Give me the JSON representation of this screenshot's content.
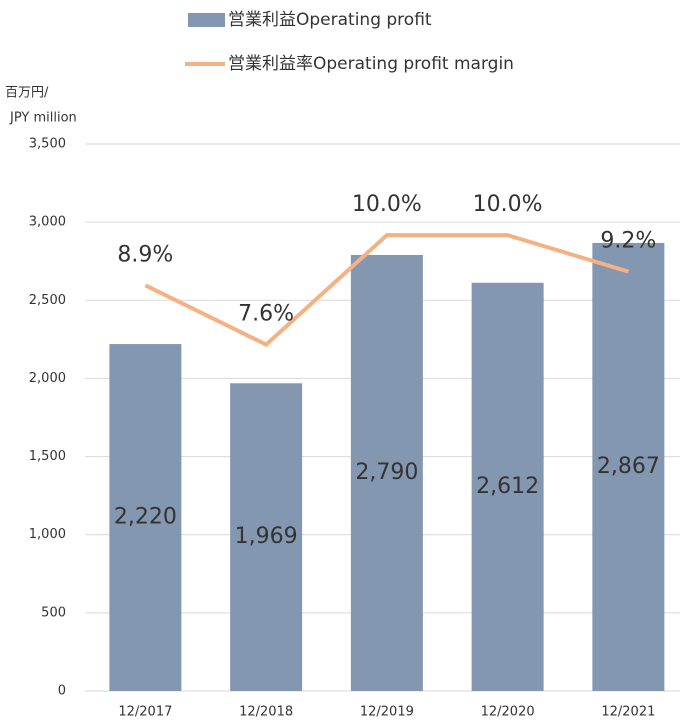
{
  "chart_data": {
    "type": "bar+line",
    "legend": "top",
    "y_label": [
      "百万円/",
      "JPY million"
    ],
    "categories": [
      "12/2017",
      "12/2018",
      "12/2019",
      "12/2020",
      "12/2021"
    ],
    "series": [
      {
        "name": "営業利益Operating profit",
        "type": "bar",
        "color": "#8497b0",
        "values": [
          2220,
          1969,
          2790,
          2612,
          2867
        ],
        "value_labels": [
          "2,220",
          "1,969",
          "2,790",
          "2,612",
          "2,867"
        ]
      },
      {
        "name": "営業利益率Operating profit margin",
        "type": "line",
        "axis": "y2",
        "color": "#f4b183",
        "values": [
          8.9,
          7.6,
          10.0,
          10.0,
          9.2
        ],
        "value_labels": [
          "8.9%",
          "7.6%",
          "10.0%",
          "10.0%",
          "9.2%"
        ]
      }
    ],
    "ylim": [
      0,
      3500
    ],
    "yticks": [
      0,
      500,
      {
        "value": 1000,
        "label": "1,000"
      },
      {
        "value": 1500,
        "label": "1,500"
      },
      {
        "value": 2000,
        "label": "2,000"
      },
      {
        "value": 2500,
        "label": "2,500"
      },
      {
        "value": 3000,
        "label": "3,000"
      },
      {
        "value": 3500,
        "label": "3,500"
      }
    ],
    "y2lim": [
      0,
      12
    ],
    "grid": true
  }
}
